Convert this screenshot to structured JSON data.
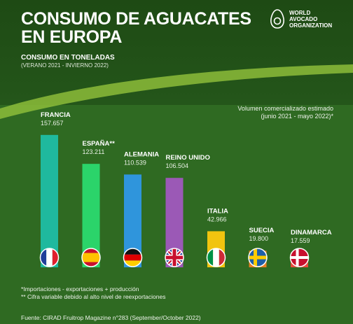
{
  "header": {
    "title_line1": "CONSUMO DE AGUACATES",
    "title_line2": "EN EUROPA",
    "subtitle": "CONSUMO EN TONELADAS",
    "period": "(VERANO 2021 - INVIERNO 2022)"
  },
  "logo": {
    "text": "WORLD\nAVOCADO\nORGANIZATION",
    "icon": "avocado-icon"
  },
  "legend": {
    "line1": "Volumen comercializado estimado",
    "line2": "(junio 2021 - mayo 2022)*"
  },
  "notes": {
    "note1": "*Importaciones - exportaciones + producción",
    "note2": "** Cifra variable debido al alto nivel de reexportaciones",
    "source": "Fuente: CIRAD Fruitrop Magazine n°283 (September/October 2022)"
  },
  "chart_data": {
    "type": "bar",
    "categories": [
      "FRANCIA",
      "ESPAÑA**",
      "ALEMANIA",
      "REINO UNIDO",
      "ITALIA",
      "SUECIA",
      "DINAMARCA"
    ],
    "values": [
      157657,
      123211,
      110539,
      106504,
      42966,
      19800,
      17559
    ],
    "value_labels": [
      "157.657",
      "123.211",
      "110.539",
      "106.504",
      "42.966",
      "19.800",
      "17.559"
    ],
    "colors": [
      "#1fb99e",
      "#2bd46a",
      "#2f95dc",
      "#9b59b6",
      "#f1c40f",
      "#e67e22",
      "#e74c3c"
    ],
    "flags": [
      "france-flag-icon",
      "spain-flag-icon",
      "germany-flag-icon",
      "uk-flag-icon",
      "italy-flag-icon",
      "sweden-flag-icon",
      "denmark-flag-icon"
    ],
    "ylim": [
      0,
      160000
    ]
  }
}
